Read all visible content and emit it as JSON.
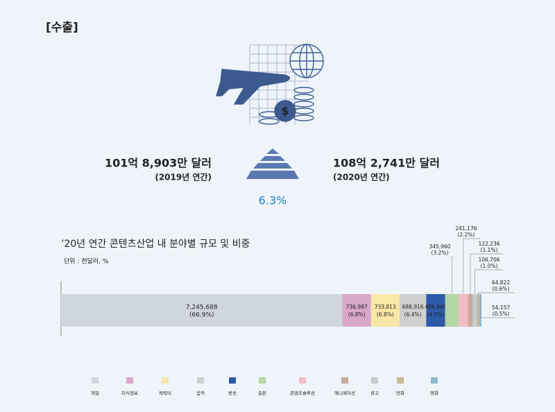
{
  "header": {
    "title": "[수출]"
  },
  "summary": {
    "before_value": "101억 8,903만 달러",
    "before_period": "(2019년 연간)",
    "after_value": "108억 2,741만 달러",
    "after_period": "(2020년 연간)",
    "growth": "6.3%"
  },
  "chart_data": {
    "type": "stacked-bar",
    "title": "’20년 연간 콘텐츠산업 내 분야별 규모 및 비중",
    "unit": "단위 : 천달러, %",
    "series": [
      {
        "name": "게임",
        "color": "#cfd6de",
        "values": [
          7245688
        ],
        "value_labels": [
          "7,245,688"
        ],
        "shares": [
          66.9
        ],
        "share_labels": [
          "(66.9%)"
        ]
      },
      {
        "name": "지식정보",
        "color": "#d9a7c9",
        "values": [
          736987
        ],
        "value_labels": [
          "736,987"
        ],
        "shares": [
          6.8
        ],
        "share_labels": [
          "(6.8%)"
        ]
      },
      {
        "name": "캐릭터",
        "color": "#f9e7a6",
        "values": [
          733813
        ],
        "value_labels": [
          "733,813"
        ],
        "shares": [
          6.8
        ],
        "share_labels": [
          "(6.8%)"
        ]
      },
      {
        "name": "음악",
        "color": "#cfcfcf",
        "values": [
          688916
        ],
        "value_labels": [
          "688,916"
        ],
        "shares": [
          6.4
        ],
        "share_labels": [
          "(6.4%)"
        ]
      },
      {
        "name": "방송",
        "color": "#2e5aa8",
        "values": [
          486945
        ],
        "value_labels": [
          "486,945"
        ],
        "shares": [
          4.5
        ],
        "share_labels": [
          "(4.5%)"
        ]
      },
      {
        "name": "출판",
        "color": "#b5d6a5",
        "values": [
          345960
        ],
        "value_labels": [
          "345,960"
        ],
        "shares": [
          3.2
        ],
        "share_labels": [
          "(3.2%)"
        ]
      },
      {
        "name": "콘텐츠솔루션",
        "color": "#f2bcc2",
        "values": [
          241176
        ],
        "value_labels": [
          "241,176"
        ],
        "shares": [
          2.2
        ],
        "share_labels": [
          "(2.2%)"
        ]
      },
      {
        "name": "애니메이션",
        "color": "#c8aaa0",
        "values": [
          122236
        ],
        "value_labels": [
          "122,236"
        ],
        "shares": [
          1.1
        ],
        "share_labels": [
          "(1.1%)"
        ]
      },
      {
        "name": "광고",
        "color": "#c4ccd0",
        "values": [
          106706
        ],
        "value_labels": [
          "106,706"
        ],
        "shares": [
          1.0
        ],
        "share_labels": [
          "(1.0%)"
        ]
      },
      {
        "name": "만화",
        "color": "#c8b89a",
        "values": [
          64822
        ],
        "value_labels": [
          "64,822"
        ],
        "shares": [
          0.6
        ],
        "share_labels": [
          "(0.6%)"
        ]
      },
      {
        "name": "영화",
        "color": "#8bbccd",
        "values": [
          54157
        ],
        "value_labels": [
          "54,157"
        ],
        "shares": [
          0.5
        ],
        "share_labels": [
          "(0.5%)"
        ]
      }
    ]
  }
}
